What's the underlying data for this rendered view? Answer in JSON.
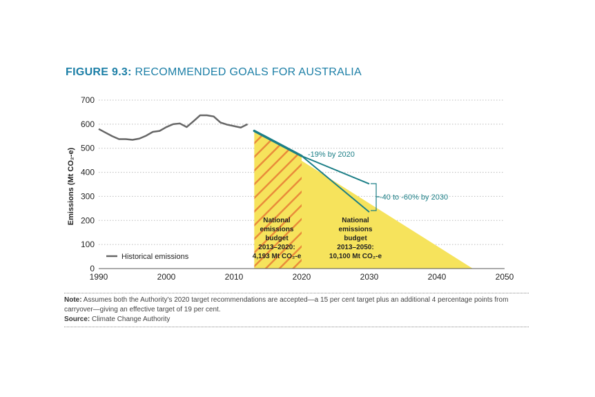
{
  "figure": {
    "label": "FIGURE 9.3:",
    "title": "RECOMMENDED GOALS FOR AUSTRALIA"
  },
  "note": {
    "label": "Note:",
    "text": "Assumes both the Authority's 2020 target recommendations are accepted—a 15 per cent target plus an additional 4 percentage points from carryover—giving an effective target of 19 per cent.",
    "source_label": "Source:",
    "source_text": "Climate Change Authority"
  },
  "colors": {
    "historical": "#666666",
    "trajectory": "#1b7e86",
    "budget_fill": "#f6e35c",
    "hatch": "#e98b3a",
    "title": "#1b7ea6",
    "grid": "#bbbbbb"
  },
  "chart_data": {
    "type": "line",
    "xlim": [
      1990,
      2050
    ],
    "ylim": [
      0,
      700
    ],
    "xticks": [
      1990,
      2000,
      2010,
      2020,
      2030,
      2040,
      2050
    ],
    "yticks": [
      0,
      100,
      200,
      300,
      400,
      500,
      600,
      700
    ],
    "ylabel": "Emissions (Mt CO₂-e)",
    "grid": "horizontal dotted",
    "legend": "bottom-left",
    "series": [
      {
        "name": "Historical emissions",
        "x": [
          1990,
          1991,
          1992,
          1993,
          1994,
          1995,
          1996,
          1997,
          1998,
          1999,
          2000,
          2001,
          2002,
          2003,
          2004,
          2005,
          2006,
          2007,
          2008,
          2009,
          2010,
          2011,
          2012
        ],
        "y": [
          580,
          565,
          550,
          538,
          538,
          535,
          540,
          552,
          568,
          572,
          588,
          600,
          603,
          588,
          612,
          637,
          637,
          632,
          607,
          598,
          592,
          586,
          600
        ]
      },
      {
        "name": "",
        "x": [
          2013,
          2020,
          2030
        ],
        "y": [
          572,
          468,
          352
        ]
      },
      {
        "name": "",
        "x": [
          2013,
          2020,
          2030
        ],
        "y": [
          572,
          468,
          235
        ]
      }
    ],
    "areas": [
      {
        "label": "hatched 2013-2020 budget",
        "x": [
          2013,
          2020
        ],
        "y_top": [
          572,
          468
        ]
      },
      {
        "label": "2013-2050 budget",
        "x": [
          2013,
          2045.3
        ],
        "y_top": [
          572,
          0
        ]
      }
    ],
    "annotations": {
      "target_2020": "-19% by 2020",
      "target_2030": "-40 to -60% by 2030",
      "budget_2020": {
        "line1": "National",
        "line2": "emissions",
        "line3": "budget",
        "line4": "2013–2020:",
        "line5": "4,193 Mt CO₂-e"
      },
      "budget_2050": {
        "line1": "National",
        "line2": "emissions",
        "line3": "budget",
        "line4": "2013–2050:",
        "line5": "10,100 Mt CO₂-e"
      }
    }
  }
}
